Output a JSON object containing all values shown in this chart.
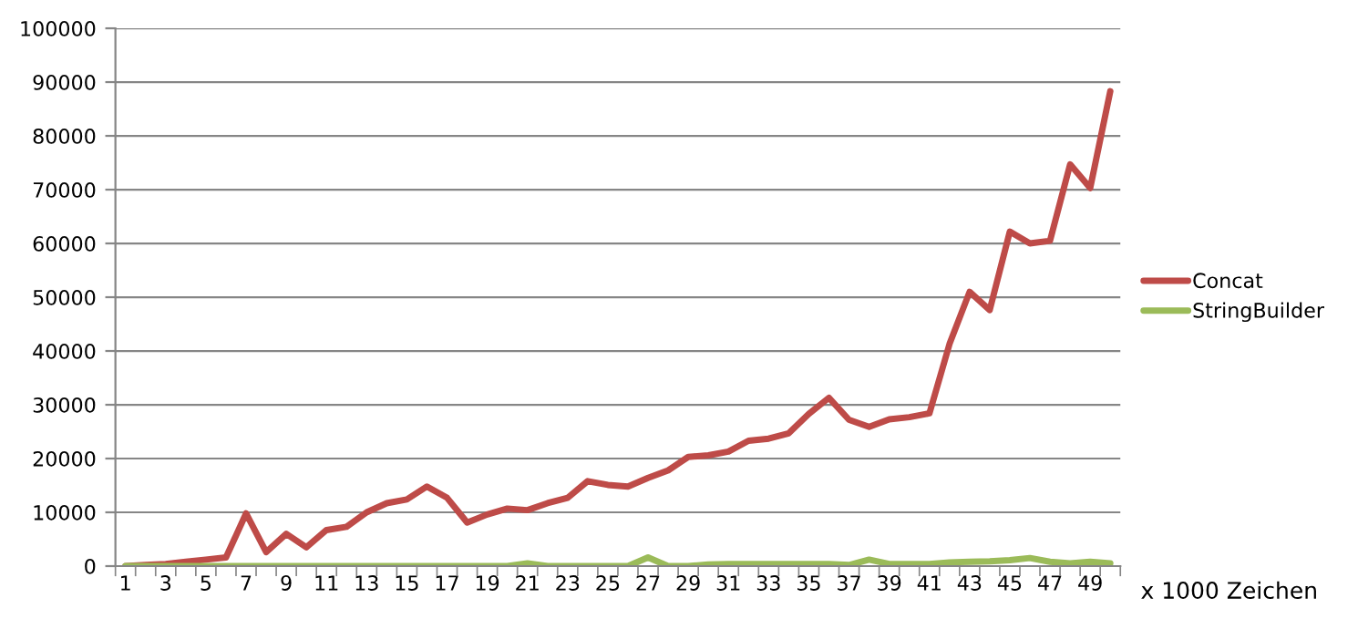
{
  "chart_data": {
    "type": "line",
    "xlabel": "x 1000 Zeichen",
    "categories": [
      "1",
      null,
      "3",
      null,
      "5",
      null,
      "7",
      null,
      "9",
      null,
      "11",
      null,
      "13",
      null,
      "15",
      null,
      "17",
      null,
      "19",
      null,
      "21",
      null,
      "23",
      null,
      "25",
      null,
      "27",
      null,
      "29",
      null,
      "31",
      null,
      "33",
      null,
      "35",
      null,
      "37",
      null,
      "39",
      null,
      "41",
      null,
      "43",
      null,
      "45",
      null,
      "47",
      null,
      "49",
      null
    ],
    "series": [
      {
        "name": "Concat",
        "color": "#be4b48",
        "values": [
          0,
          200,
          400,
          800,
          1200,
          1600,
          9800,
          2600,
          6000,
          3500,
          6700,
          7300,
          10000,
          11700,
          12400,
          14800,
          12700,
          8100,
          9600,
          10700,
          10400,
          11700,
          12700,
          15800,
          15100,
          14800,
          16400,
          17800,
          20300,
          20600,
          21300,
          23300,
          23700,
          24700,
          28300,
          31300,
          27200,
          25900,
          27300,
          27700,
          28400,
          41300,
          51000,
          47600,
          62200,
          60000,
          60500,
          74700,
          70300,
          88300
        ]
      },
      {
        "name": "StringBuilder",
        "color": "#9bbb59",
        "values": [
          0,
          0,
          0,
          0,
          0,
          0,
          0,
          0,
          0,
          0,
          0,
          0,
          0,
          0,
          0,
          0,
          0,
          0,
          0,
          0,
          500,
          0,
          0,
          0,
          0,
          0,
          1600,
          0,
          0,
          300,
          400,
          400,
          400,
          400,
          400,
          400,
          200,
          1200,
          400,
          400,
          400,
          700,
          800,
          900,
          1100,
          1500,
          800,
          500,
          800,
          500
        ]
      }
    ],
    "ylim": [
      0,
      100000
    ],
    "yticks": [
      0,
      10000,
      20000,
      30000,
      40000,
      50000,
      60000,
      70000,
      80000,
      90000,
      100000
    ],
    "grid": "y",
    "legend": "right",
    "marker": "none",
    "line_style": "solid"
  }
}
